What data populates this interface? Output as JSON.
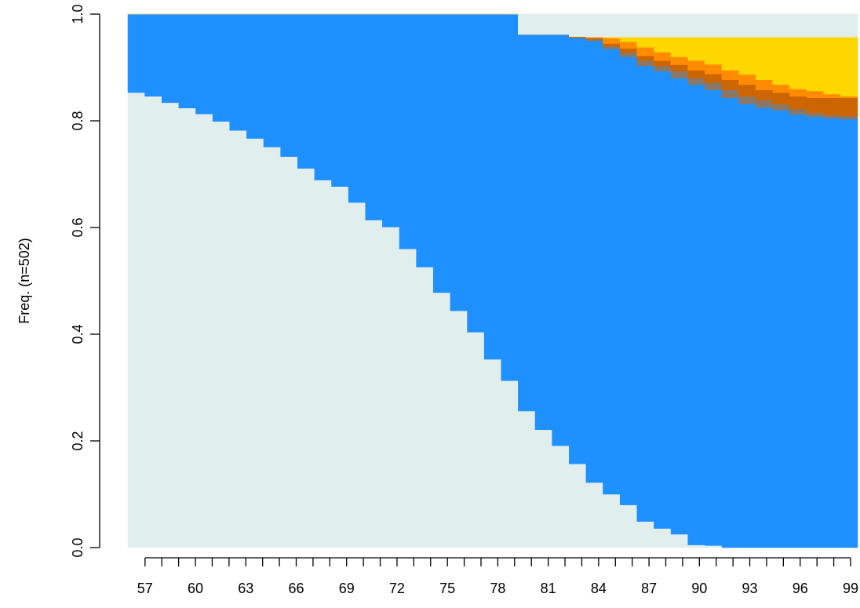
{
  "chart_data": {
    "type": "area",
    "title": "",
    "xlabel": "",
    "ylabel": "Freq. (n=502)",
    "x_start": 57,
    "x_end": 99,
    "x_tick_labels": [
      "57",
      "60",
      "63",
      "66",
      "69",
      "72",
      "75",
      "78",
      "81",
      "84",
      "87",
      "90",
      "93",
      "96",
      "99"
    ],
    "ylim": [
      0,
      1
    ],
    "y_ticks": [
      0,
      0.2,
      0.4,
      0.6,
      0.8,
      1
    ],
    "y_tick_labels": [
      "0.0",
      "0.2",
      "0.4",
      "0.6",
      "0.8",
      "1.0"
    ],
    "grid": false,
    "stack_order_bottom_to_top": [
      "light",
      "blue",
      "grey",
      "brown",
      "orange",
      "gold",
      "top-light"
    ],
    "colors": {
      "light": "#E0EEEE",
      "blue": "#1E90FF",
      "grey": "#8B7765",
      "brown": "#CD6600",
      "orange": "#FF8C00",
      "gold": "#FFD700",
      "top-light": "#E0EEEE"
    },
    "cumulative_boundaries": {
      "light": [
        0.853,
        0.846,
        0.834,
        0.824,
        0.813,
        0.799,
        0.782,
        0.767,
        0.751,
        0.733,
        0.711,
        0.689,
        0.677,
        0.647,
        0.614,
        0.601,
        0.56,
        0.526,
        0.478,
        0.444,
        0.404,
        0.353,
        0.313,
        0.256,
        0.221,
        0.191,
        0.157,
        0.122,
        0.1,
        0.08,
        0.049,
        0.036,
        0.025,
        0.005,
        0.004,
        0,
        0,
        0,
        0,
        0,
        0,
        0,
        0
      ],
      "blue": [
        1,
        1,
        1,
        1,
        1,
        1,
        1,
        1,
        1,
        1,
        1,
        1,
        1,
        1,
        1,
        1,
        1,
        1,
        1,
        1,
        1,
        1,
        1,
        0.962,
        0.962,
        0.962,
        0.955,
        0.95,
        0.935,
        0.92,
        0.903,
        0.893,
        0.88,
        0.868,
        0.858,
        0.843,
        0.832,
        0.825,
        0.82,
        0.812,
        0.808,
        0.805,
        0.803
      ],
      "grey": [
        1,
        1,
        1,
        1,
        1,
        1,
        1,
        1,
        1,
        1,
        1,
        1,
        1,
        1,
        1,
        1,
        1,
        1,
        1,
        1,
        1,
        1,
        1,
        0.962,
        0.962,
        0.962,
        0.957,
        0.953,
        0.94,
        0.928,
        0.913,
        0.903,
        0.893,
        0.88,
        0.872,
        0.858,
        0.846,
        0.839,
        0.831,
        0.822,
        0.815,
        0.811,
        0.809
      ],
      "brown": [
        1,
        1,
        1,
        1,
        1,
        1,
        1,
        1,
        1,
        1,
        1,
        1,
        1,
        1,
        1,
        1,
        1,
        1,
        1,
        1,
        1,
        1,
        1,
        0.962,
        0.962,
        0.962,
        0.958,
        0.955,
        0.945,
        0.936,
        0.922,
        0.913,
        0.905,
        0.895,
        0.888,
        0.877,
        0.868,
        0.858,
        0.853,
        0.846,
        0.843,
        0.843,
        0.843
      ],
      "orange": [
        1,
        1,
        1,
        1,
        1,
        1,
        1,
        1,
        1,
        1,
        1,
        1,
        1,
        1,
        1,
        1,
        1,
        1,
        1,
        1,
        1,
        1,
        1,
        0.962,
        0.962,
        0.962,
        0.96,
        0.96,
        0.955,
        0.948,
        0.938,
        0.929,
        0.92,
        0.913,
        0.906,
        0.895,
        0.887,
        0.877,
        0.868,
        0.86,
        0.856,
        0.85,
        0.846
      ],
      "gold": [
        1,
        1,
        1,
        1,
        1,
        1,
        1,
        1,
        1,
        1,
        1,
        1,
        1,
        1,
        1,
        1,
        1,
        1,
        1,
        1,
        1,
        1,
        1,
        0.962,
        0.962,
        0.962,
        0.958,
        0.957,
        0.957,
        0.957,
        0.957,
        0.957,
        0.957,
        0.957,
        0.957,
        0.957,
        0.957,
        0.957,
        0.957,
        0.957,
        0.957,
        0.957,
        0.957
      ],
      "top-light": [
        1,
        1,
        1,
        1,
        1,
        1,
        1,
        1,
        1,
        1,
        1,
        1,
        1,
        1,
        1,
        1,
        1,
        1,
        1,
        1,
        1,
        1,
        1,
        1,
        1,
        1,
        1,
        1,
        1,
        1,
        1,
        1,
        1,
        1,
        1,
        1,
        1,
        1,
        1,
        1,
        1,
        1,
        1
      ]
    }
  }
}
